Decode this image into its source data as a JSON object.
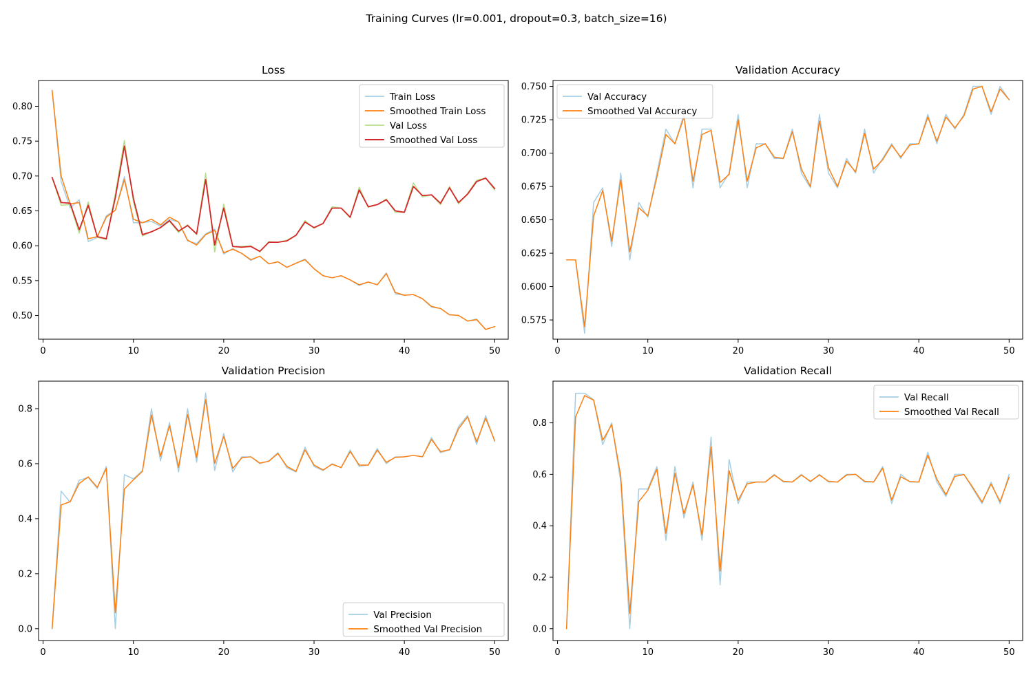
{
  "figure": {
    "suptitle": "Training Curves (lr=0.001, dropout=0.3, batch_size=16)"
  },
  "chart_data": [
    {
      "type": "line",
      "title": "Loss",
      "xlabel": "",
      "ylabel": "",
      "xlim": [
        -0.5,
        51.5
      ],
      "ylim": [
        0.466,
        0.837
      ],
      "xticks": [
        0,
        10,
        20,
        30,
        40,
        50
      ],
      "yticks": [
        0.5,
        0.55,
        0.6,
        0.65,
        0.7,
        0.75,
        0.8
      ],
      "ytick_labels": [
        "0.50",
        "0.55",
        "0.60",
        "0.65",
        "0.70",
        "0.75",
        "0.80"
      ],
      "grid": false,
      "legend_position": "upper right",
      "x": [
        1,
        2,
        3,
        4,
        5,
        6,
        7,
        8,
        9,
        10,
        11,
        12,
        13,
        14,
        15,
        16,
        17,
        18,
        19,
        20,
        21,
        22,
        23,
        24,
        25,
        26,
        27,
        28,
        29,
        30,
        31,
        32,
        33,
        34,
        35,
        36,
        37,
        38,
        39,
        40,
        41,
        42,
        43,
        44,
        45,
        46,
        47,
        48,
        49,
        50
      ],
      "series": [
        {
          "name": "Train Loss",
          "color": "#a6cee3",
          "width": 1.5,
          "values": [
            0.823,
            0.692,
            0.654,
            0.666,
            0.606,
            0.612,
            0.643,
            0.651,
            0.699,
            0.633,
            0.633,
            0.635,
            0.628,
            0.638,
            0.634,
            0.607,
            0.603,
            0.617,
            0.624,
            0.588,
            0.596,
            0.589,
            0.579,
            0.585,
            0.574,
            0.577,
            0.569,
            0.575,
            0.581,
            0.567,
            0.557,
            0.554,
            0.557,
            0.551,
            0.543,
            0.548,
            0.544,
            0.561,
            0.531,
            0.529,
            0.53,
            0.524,
            0.512,
            0.51,
            0.501,
            0.5,
            0.492,
            0.495,
            0.48,
            0.484
          ]
        },
        {
          "name": "Smoothed Train Loss",
          "color": "#ff7f0e",
          "width": 1.5,
          "values": [
            0.823,
            0.7,
            0.66,
            0.662,
            0.61,
            0.613,
            0.641,
            0.651,
            0.695,
            0.638,
            0.633,
            0.638,
            0.63,
            0.641,
            0.634,
            0.608,
            0.601,
            0.616,
            0.622,
            0.59,
            0.595,
            0.589,
            0.58,
            0.585,
            0.574,
            0.577,
            0.569,
            0.575,
            0.58,
            0.567,
            0.557,
            0.554,
            0.557,
            0.551,
            0.544,
            0.548,
            0.544,
            0.56,
            0.533,
            0.529,
            0.53,
            0.524,
            0.513,
            0.51,
            0.501,
            0.5,
            0.492,
            0.494,
            0.48,
            0.484
          ]
        },
        {
          "name": "Val Loss",
          "color": "#b2df8a",
          "width": 1.5,
          "values": [
            0.698,
            0.658,
            0.659,
            0.618,
            0.663,
            0.612,
            0.609,
            0.675,
            0.751,
            0.663,
            0.614,
            0.62,
            0.626,
            0.635,
            0.619,
            0.63,
            0.616,
            0.704,
            0.591,
            0.66,
            0.599,
            0.599,
            0.6,
            0.591,
            0.606,
            0.605,
            0.608,
            0.615,
            0.636,
            0.625,
            0.632,
            0.656,
            0.654,
            0.64,
            0.684,
            0.655,
            0.659,
            0.667,
            0.648,
            0.648,
            0.69,
            0.67,
            0.673,
            0.659,
            0.685,
            0.66,
            0.675,
            0.694,
            0.697,
            0.68
          ]
        },
        {
          "name": "Smoothed Val Loss",
          "color": "#d62728",
          "width": 1.8,
          "values": [
            0.698,
            0.662,
            0.661,
            0.623,
            0.658,
            0.613,
            0.61,
            0.669,
            0.743,
            0.668,
            0.616,
            0.62,
            0.626,
            0.636,
            0.621,
            0.629,
            0.617,
            0.695,
            0.601,
            0.654,
            0.599,
            0.598,
            0.599,
            0.592,
            0.605,
            0.605,
            0.607,
            0.615,
            0.634,
            0.626,
            0.632,
            0.654,
            0.654,
            0.641,
            0.68,
            0.656,
            0.659,
            0.666,
            0.65,
            0.648,
            0.685,
            0.672,
            0.673,
            0.661,
            0.683,
            0.662,
            0.674,
            0.692,
            0.697,
            0.682
          ]
        }
      ]
    },
    {
      "type": "line",
      "title": "Validation Accuracy",
      "xlabel": "",
      "ylabel": "",
      "xlim": [
        -0.5,
        51.5
      ],
      "ylim": [
        0.5606,
        0.7544
      ],
      "xticks": [
        0,
        10,
        20,
        30,
        40,
        50
      ],
      "yticks": [
        0.575,
        0.6,
        0.625,
        0.65,
        0.675,
        0.7,
        0.725,
        0.75
      ],
      "ytick_labels": [
        "0.575",
        "0.600",
        "0.625",
        "0.650",
        "0.675",
        "0.700",
        "0.725",
        "0.750"
      ],
      "grid": false,
      "legend_position": "upper left",
      "x": [
        1,
        2,
        3,
        4,
        5,
        6,
        7,
        8,
        9,
        10,
        11,
        12,
        13,
        14,
        15,
        16,
        17,
        18,
        19,
        20,
        21,
        22,
        23,
        24,
        25,
        26,
        27,
        28,
        29,
        30,
        31,
        32,
        33,
        34,
        35,
        36,
        37,
        38,
        39,
        40,
        41,
        42,
        43,
        44,
        45,
        46,
        47,
        48,
        49,
        50
      ],
      "series": [
        {
          "name": "Val Accuracy",
          "color": "#a6cee3",
          "width": 1.5,
          "values": [
            0.62,
            0.62,
            0.565,
            0.663,
            0.674,
            0.63,
            0.685,
            0.62,
            0.663,
            0.652,
            0.685,
            0.718,
            0.707,
            0.729,
            0.674,
            0.718,
            0.718,
            0.674,
            0.685,
            0.729,
            0.674,
            0.707,
            0.707,
            0.696,
            0.696,
            0.718,
            0.685,
            0.674,
            0.729,
            0.685,
            0.674,
            0.696,
            0.685,
            0.718,
            0.685,
            0.696,
            0.707,
            0.696,
            0.707,
            0.707,
            0.729,
            0.707,
            0.729,
            0.718,
            0.729,
            0.75,
            0.75,
            0.729,
            0.75,
            0.74
          ]
        },
        {
          "name": "Smoothed Val Accuracy",
          "color": "#ff7f0e",
          "width": 1.5,
          "values": [
            0.62,
            0.62,
            0.57,
            0.653,
            0.672,
            0.634,
            0.68,
            0.626,
            0.659,
            0.653,
            0.682,
            0.714,
            0.707,
            0.727,
            0.679,
            0.714,
            0.717,
            0.678,
            0.684,
            0.725,
            0.679,
            0.704,
            0.707,
            0.697,
            0.696,
            0.716,
            0.688,
            0.675,
            0.724,
            0.689,
            0.675,
            0.694,
            0.686,
            0.715,
            0.688,
            0.695,
            0.706,
            0.697,
            0.706,
            0.707,
            0.727,
            0.709,
            0.727,
            0.719,
            0.728,
            0.748,
            0.75,
            0.731,
            0.748,
            0.74
          ]
        }
      ]
    },
    {
      "type": "line",
      "title": "Validation Precision",
      "xlabel": "",
      "ylabel": "",
      "xlim": [
        -0.5,
        51.5
      ],
      "ylim": [
        -0.043,
        0.9
      ],
      "xticks": [
        0,
        10,
        20,
        30,
        40,
        50
      ],
      "yticks": [
        0.0,
        0.2,
        0.4,
        0.6,
        0.8
      ],
      "ytick_labels": [
        "0.0",
        "0.2",
        "0.4",
        "0.6",
        "0.8"
      ],
      "grid": false,
      "legend_position": "lower right",
      "x": [
        1,
        2,
        3,
        4,
        5,
        6,
        7,
        8,
        9,
        10,
        11,
        12,
        13,
        14,
        15,
        16,
        17,
        18,
        19,
        20,
        21,
        22,
        23,
        24,
        25,
        26,
        27,
        28,
        29,
        30,
        31,
        32,
        33,
        34,
        35,
        36,
        37,
        38,
        39,
        40,
        41,
        42,
        43,
        44,
        45,
        46,
        47,
        48,
        49,
        50
      ],
      "series": [
        {
          "name": "Val Precision",
          "color": "#a6cee3",
          "width": 1.5,
          "values": [
            0.0,
            0.5,
            0.46,
            0.54,
            0.55,
            0.51,
            0.59,
            0.0,
            0.56,
            0.545,
            0.575,
            0.8,
            0.61,
            0.75,
            0.57,
            0.8,
            0.605,
            0.857,
            0.575,
            0.71,
            0.57,
            0.625,
            0.625,
            0.6,
            0.61,
            0.64,
            0.585,
            0.57,
            0.66,
            0.59,
            0.575,
            0.6,
            0.585,
            0.65,
            0.59,
            0.595,
            0.655,
            0.6,
            0.625,
            0.625,
            0.63,
            0.625,
            0.695,
            0.64,
            0.65,
            0.735,
            0.775,
            0.67,
            0.775,
            0.68
          ]
        },
        {
          "name": "Smoothed Val Precision",
          "color": "#ff7f0e",
          "width": 1.5,
          "values": [
            0.0,
            0.45,
            0.462,
            0.528,
            0.552,
            0.514,
            0.583,
            0.058,
            0.508,
            0.541,
            0.572,
            0.777,
            0.627,
            0.738,
            0.587,
            0.779,
            0.622,
            0.833,
            0.601,
            0.699,
            0.583,
            0.621,
            0.625,
            0.602,
            0.609,
            0.637,
            0.59,
            0.572,
            0.65,
            0.595,
            0.577,
            0.598,
            0.586,
            0.644,
            0.595,
            0.595,
            0.649,
            0.605,
            0.623,
            0.625,
            0.63,
            0.625,
            0.688,
            0.644,
            0.651,
            0.727,
            0.77,
            0.68,
            0.765,
            0.684
          ]
        }
      ]
    },
    {
      "type": "line",
      "title": "Validation Recall",
      "xlabel": "",
      "ylabel": "",
      "xlim": [
        -0.5,
        51.5
      ],
      "ylim": [
        -0.046,
        0.962
      ],
      "xticks": [
        0,
        10,
        20,
        30,
        40,
        50
      ],
      "yticks": [
        0.0,
        0.2,
        0.4,
        0.6,
        0.8
      ],
      "ytick_labels": [
        "0.0",
        "0.2",
        "0.4",
        "0.6",
        "0.8"
      ],
      "grid": false,
      "legend_position": "upper right",
      "x": [
        1,
        2,
        3,
        4,
        5,
        6,
        7,
        8,
        9,
        10,
        11,
        12,
        13,
        14,
        15,
        16,
        17,
        18,
        19,
        20,
        21,
        22,
        23,
        24,
        25,
        26,
        27,
        28,
        29,
        30,
        31,
        32,
        33,
        34,
        35,
        36,
        37,
        38,
        39,
        40,
        41,
        42,
        43,
        44,
        45,
        46,
        47,
        48,
        49,
        50
      ],
      "series": [
        {
          "name": "Val Recall",
          "color": "#a6cee3",
          "width": 1.5,
          "values": [
            0.0,
            0.915,
            0.915,
            0.89,
            0.715,
            0.8,
            0.57,
            0.0,
            0.543,
            0.543,
            0.63,
            0.343,
            0.63,
            0.43,
            0.57,
            0.343,
            0.745,
            0.17,
            0.657,
            0.486,
            0.57,
            0.57,
            0.57,
            0.6,
            0.57,
            0.57,
            0.6,
            0.57,
            0.6,
            0.57,
            0.57,
            0.6,
            0.6,
            0.57,
            0.57,
            0.63,
            0.486,
            0.6,
            0.57,
            0.57,
            0.686,
            0.57,
            0.514,
            0.6,
            0.6,
            0.543,
            0.486,
            0.57,
            0.486,
            0.6
          ]
        },
        {
          "name": "Smoothed Val Recall",
          "color": "#ff7f0e",
          "width": 1.5,
          "values": [
            0.0,
            0.823,
            0.906,
            0.888,
            0.732,
            0.793,
            0.593,
            0.059,
            0.494,
            0.538,
            0.62,
            0.371,
            0.604,
            0.447,
            0.558,
            0.364,
            0.706,
            0.224,
            0.614,
            0.499,
            0.563,
            0.57,
            0.57,
            0.597,
            0.573,
            0.57,
            0.597,
            0.573,
            0.597,
            0.573,
            0.57,
            0.597,
            0.6,
            0.573,
            0.57,
            0.624,
            0.5,
            0.59,
            0.572,
            0.57,
            0.674,
            0.581,
            0.521,
            0.592,
            0.599,
            0.548,
            0.492,
            0.562,
            0.494,
            0.589
          ]
        }
      ]
    }
  ]
}
